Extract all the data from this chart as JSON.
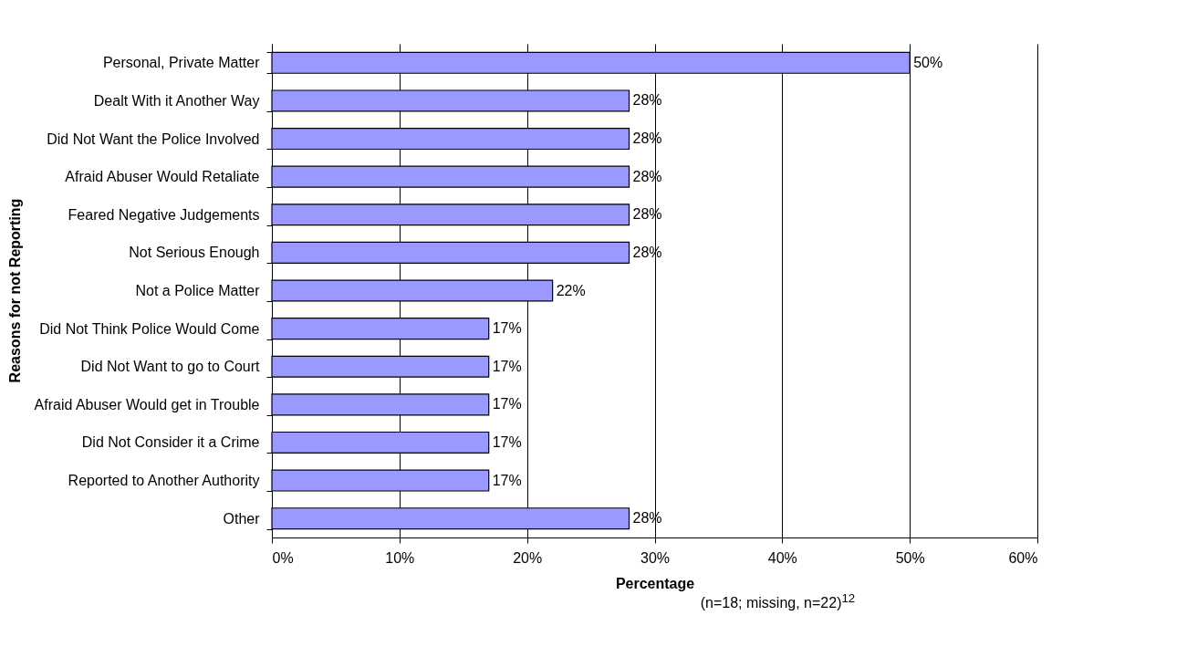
{
  "chart_data": {
    "type": "bar",
    "orientation": "horizontal",
    "xlabel": "Percentage",
    "ylabel": "Reasons for not Reporting",
    "categories": [
      "Personal, Private Matter",
      "Dealt With it Another Way",
      "Did Not Want the Police Involved",
      "Afraid Abuser Would Retaliate",
      "Feared Negative Judgements",
      "Not Serious Enough",
      "Not a Police Matter",
      "Did Not Think Police Would Come",
      "Did Not Want to go to Court",
      "Afraid Abuser Would get in Trouble",
      "Did Not Consider it a Crime",
      "Reported to Another Authority",
      "Other"
    ],
    "values": [
      50,
      28,
      28,
      28,
      28,
      28,
      22,
      17,
      17,
      17,
      17,
      17,
      28
    ],
    "value_labels": [
      "50%",
      "28%",
      "28%",
      "28%",
      "28%",
      "28%",
      "22%",
      "17%",
      "17%",
      "17%",
      "17%",
      "17%",
      "28%"
    ],
    "color": "#9999ff",
    "xlim": [
      0,
      60
    ],
    "xticks": [
      {
        "value": 0,
        "label": "0%"
      },
      {
        "value": 10,
        "label": "10%"
      },
      {
        "value": 20,
        "label": "20%"
      },
      {
        "value": 30,
        "label": "30%"
      },
      {
        "value": 40,
        "label": "40%"
      },
      {
        "value": 50,
        "label": "50%"
      },
      {
        "value": 60,
        "label": "60%"
      }
    ],
    "grid": "x",
    "annotations": [
      "(n=18; missing, n=22)$^{12}$"
    ]
  }
}
